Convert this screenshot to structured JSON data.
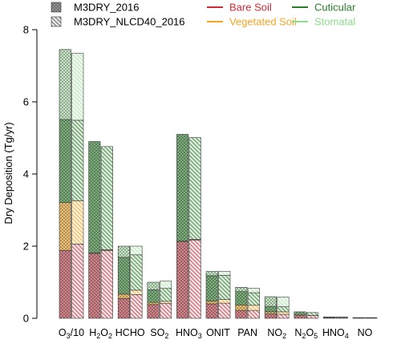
{
  "chart_data": {
    "type": "bar",
    "subtype": "stacked-grouped",
    "title": "",
    "xlabel": "",
    "ylabel": "Dry Deposition (Tg/yr)",
    "ylim": [
      0,
      8
    ],
    "yticks": [
      0,
      2,
      4,
      6,
      8
    ],
    "grid": false,
    "legend_position": "top",
    "categories": [
      {
        "base": "O",
        "sub": "3",
        "tail": "/10"
      },
      {
        "base": "H",
        "sub": "2",
        "tail": "O",
        "sub2": "2"
      },
      {
        "base": "HCHO",
        "sub": "",
        "tail": ""
      },
      {
        "base": "SO",
        "sub": "2",
        "tail": ""
      },
      {
        "base": "HNO",
        "sub": "3",
        "tail": ""
      },
      {
        "base": "ONIT",
        "sub": "",
        "tail": ""
      },
      {
        "base": "PAN",
        "sub": "",
        "tail": ""
      },
      {
        "base": "NO",
        "sub": "2",
        "tail": ""
      },
      {
        "base": "N",
        "sub": "2",
        "tail": "O",
        "sub2": "5"
      },
      {
        "base": "HNO",
        "sub": "4",
        "tail": ""
      },
      {
        "base": "NO",
        "sub": "",
        "tail": ""
      }
    ],
    "models": [
      {
        "name": "M3DRY_2016",
        "pattern": "dense-crosshatch"
      },
      {
        "name": "M3DRY_NLCD40_2016",
        "pattern": "diagonal-hatch"
      }
    ],
    "components": [
      {
        "name": "Bare Soil",
        "color": "#cc2b36",
        "fill": "#d98a90"
      },
      {
        "name": "Vegetated Soil",
        "color": "#f5a623",
        "fill": "#f7c97a"
      },
      {
        "name": "Cuticular",
        "color": "#2a7d2a",
        "fill": "#7fb47f"
      },
      {
        "name": "Stomatal",
        "color": "#8fdc8f",
        "fill": "#cdeecd"
      }
    ],
    "series": [
      {
        "model": "M3DRY_2016",
        "component": "Bare Soil",
        "values": [
          1.88,
          1.8,
          0.55,
          0.38,
          2.12,
          0.4,
          0.22,
          0.12,
          0.09,
          0.02,
          0.01
        ]
      },
      {
        "model": "M3DRY_2016",
        "component": "Vegetated Soil",
        "values": [
          1.33,
          0.02,
          0.12,
          0.06,
          0.02,
          0.08,
          0.15,
          0.06,
          0.0,
          0.0,
          0.0
        ]
      },
      {
        "model": "M3DRY_2016",
        "component": "Cuticular",
        "values": [
          2.3,
          3.08,
          1.02,
          0.35,
          2.96,
          0.7,
          0.37,
          0.15,
          0.09,
          0.02,
          0.01
        ]
      },
      {
        "model": "M3DRY_2016",
        "component": "Stomatal",
        "values": [
          1.94,
          0.0,
          0.31,
          0.21,
          0.0,
          0.12,
          0.12,
          0.27,
          0.0,
          0.0,
          0.0
        ]
      },
      {
        "model": "M3DRY_NLCD40_2016",
        "component": "Bare Soil",
        "values": [
          2.06,
          1.88,
          0.66,
          0.41,
          2.17,
          0.42,
          0.22,
          0.11,
          0.08,
          0.02,
          0.01
        ]
      },
      {
        "model": "M3DRY_NLCD40_2016",
        "component": "Vegetated Soil",
        "values": [
          1.2,
          0.02,
          0.12,
          0.06,
          0.02,
          0.1,
          0.14,
          0.07,
          0.0,
          0.0,
          0.0
        ]
      },
      {
        "model": "M3DRY_NLCD40_2016",
        "component": "Cuticular",
        "values": [
          2.23,
          2.86,
          0.98,
          0.36,
          2.82,
          0.67,
          0.35,
          0.14,
          0.08,
          0.02,
          0.01
        ]
      },
      {
        "model": "M3DRY_NLCD40_2016",
        "component": "Stomatal",
        "values": [
          1.86,
          0.0,
          0.24,
          0.2,
          0.0,
          0.11,
          0.12,
          0.27,
          0.0,
          0.0,
          0.0
        ]
      }
    ]
  }
}
